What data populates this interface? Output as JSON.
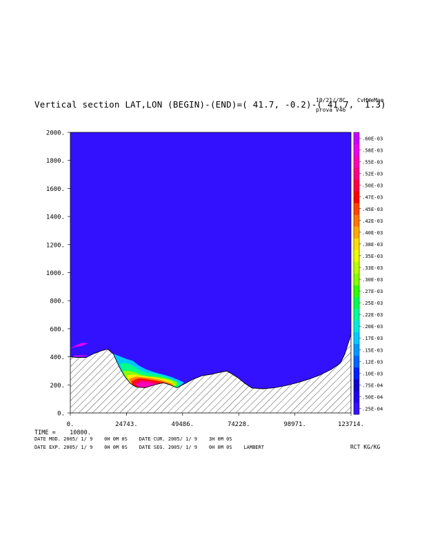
{
  "header": {
    "title": "Vertical section LAT,LON (BEGIN)-(END)=( 41.7, -0.2)-( 41.7,  1.3)",
    "run_date": "10/21//8C",
    "run_name": "prova V46",
    "model_id": "CvHWeMae"
  },
  "footer": {
    "time_line": "TIME =    10800.",
    "date_line_1": "DATE MOD. 2005/ 1/ 9    0H 0M 0S    DATE CUR. 2005/ 1/ 9    3H 0M 0S",
    "date_line_2": "DATE EXP. 2005/ 1/ 9    0H 0M 0S    DATE SEG. 2005/ 1/ 9    0H 0M 0S    LAMBERT",
    "units": "RCT KG/KG"
  },
  "chart_data": {
    "type": "heatmap",
    "title": "Vertical section LAT,LON (BEGIN)-(END)=( 41.7, -0.2)-( 41.7,  1.3)",
    "xlabel": "",
    "ylabel": "",
    "xlim": [
      0,
      123714
    ],
    "ylim": [
      0,
      2000
    ],
    "x_ticks": [
      "0.",
      "24743.",
      "49486.",
      "74228.",
      "98971.",
      "123714."
    ],
    "x_tick_values": [
      0,
      24743,
      49486,
      74228,
      98971,
      123714
    ],
    "y_ticks": [
      "0.",
      "200.",
      "400.",
      "600.",
      "800.",
      "1000.",
      "1200.",
      "1400.",
      "1600.",
      "1800.",
      "2000."
    ],
    "y_tick_values": [
      0,
      200,
      400,
      600,
      800,
      1000,
      1200,
      1400,
      1600,
      1800,
      2000
    ],
    "background_color": "#3311ff",
    "terrain": [
      [
        0,
        400
      ],
      [
        3000,
        395
      ],
      [
        7000,
        395
      ],
      [
        10000,
        420
      ],
      [
        14000,
        445
      ],
      [
        16500,
        455
      ],
      [
        19000,
        420
      ],
      [
        21500,
        330
      ],
      [
        24000,
        260
      ],
      [
        26500,
        210
      ],
      [
        29000,
        185
      ],
      [
        33000,
        180
      ],
      [
        37000,
        200
      ],
      [
        41000,
        215
      ],
      [
        44000,
        200
      ],
      [
        47000,
        180
      ],
      [
        50000,
        205
      ],
      [
        54000,
        240
      ],
      [
        58000,
        265
      ],
      [
        62000,
        275
      ],
      [
        66000,
        290
      ],
      [
        69000,
        298
      ],
      [
        71000,
        280
      ],
      [
        74000,
        250
      ],
      [
        77000,
        210
      ],
      [
        80000,
        178
      ],
      [
        85000,
        172
      ],
      [
        90000,
        180
      ],
      [
        95000,
        195
      ],
      [
        100000,
        215
      ],
      [
        105000,
        240
      ],
      [
        110000,
        270
      ],
      [
        115000,
        310
      ],
      [
        119000,
        355
      ],
      [
        121000,
        420
      ],
      [
        123714,
        560
      ]
    ],
    "contour_regions": [
      {
        "level": "1.00E-04",
        "color": "#dd00ff",
        "points": [
          [
            0,
            460
          ],
          [
            3000,
            485
          ],
          [
            5500,
            500
          ],
          [
            7500,
            495
          ],
          [
            5000,
            478
          ],
          [
            1500,
            470
          ]
        ]
      },
      {
        "level": "1.00E-04",
        "color": "#dd00ff",
        "points": [
          [
            14500,
            440
          ],
          [
            16000,
            458
          ],
          [
            17000,
            448
          ],
          [
            15500,
            436
          ]
        ]
      },
      {
        "level": "1.00E-04",
        "color": "#dd00ff",
        "points": [
          [
            1500,
            408
          ],
          [
            7500,
            410
          ],
          [
            6000,
            404
          ],
          [
            2000,
            402
          ]
        ]
      },
      {
        "level": "1.00E-04",
        "color": "#0d08ee",
        "points": [
          [
            10000,
            428
          ],
          [
            15500,
            450
          ],
          [
            17500,
            448
          ],
          [
            14000,
            436
          ]
        ]
      },
      {
        "level": "1.20E-04",
        "color": "#00c8ff",
        "points": [
          [
            19000,
            420
          ],
          [
            21500,
            405
          ],
          [
            24500,
            385
          ],
          [
            27500,
            370
          ],
          [
            30000,
            338
          ],
          [
            33000,
            312
          ],
          [
            36000,
            295
          ],
          [
            39000,
            280
          ],
          [
            42000,
            268
          ],
          [
            45000,
            252
          ],
          [
            48000,
            232
          ],
          [
            50000,
            215
          ],
          [
            47000,
            180
          ],
          [
            44000,
            200
          ],
          [
            41000,
            215
          ],
          [
            37000,
            200
          ],
          [
            33000,
            180
          ],
          [
            29000,
            185
          ],
          [
            26500,
            210
          ],
          [
            24000,
            260
          ],
          [
            21500,
            330
          ]
        ]
      },
      {
        "level": "1.70E-04",
        "color": "#00ff88",
        "points": [
          [
            22000,
            350
          ],
          [
            24000,
            355
          ],
          [
            26500,
            345
          ],
          [
            29000,
            320
          ],
          [
            31500,
            298
          ],
          [
            34000,
            285
          ],
          [
            37000,
            278
          ],
          [
            40500,
            265
          ],
          [
            43500,
            245
          ],
          [
            46500,
            225
          ],
          [
            48500,
            205
          ],
          [
            47000,
            180
          ],
          [
            44000,
            200
          ],
          [
            41000,
            215
          ],
          [
            37000,
            200
          ],
          [
            33000,
            180
          ],
          [
            29000,
            185
          ],
          [
            26500,
            210
          ],
          [
            24000,
            260
          ],
          [
            22500,
            320
          ]
        ]
      },
      {
        "level": "2.20E-04",
        "color": "#88ff00",
        "points": [
          [
            23500,
            300
          ],
          [
            26000,
            300
          ],
          [
            28500,
            288
          ],
          [
            31000,
            272
          ],
          [
            34000,
            262
          ],
          [
            37500,
            258
          ],
          [
            41000,
            250
          ],
          [
            44500,
            235
          ],
          [
            47000,
            218
          ],
          [
            46500,
            190
          ],
          [
            44000,
            200
          ],
          [
            41000,
            215
          ],
          [
            37000,
            200
          ],
          [
            33000,
            180
          ],
          [
            29000,
            185
          ],
          [
            26500,
            210
          ],
          [
            24000,
            260
          ]
        ]
      },
      {
        "level": "2.70E-04",
        "color": "#ffee00",
        "points": [
          [
            25000,
            268
          ],
          [
            28000,
            272
          ],
          [
            31000,
            262
          ],
          [
            34500,
            255
          ],
          [
            38000,
            248
          ],
          [
            41500,
            238
          ],
          [
            44500,
            222
          ],
          [
            46000,
            200
          ],
          [
            44000,
            200
          ],
          [
            41000,
            215
          ],
          [
            37000,
            200
          ],
          [
            33000,
            180
          ],
          [
            29000,
            185
          ],
          [
            26500,
            210
          ]
        ]
      },
      {
        "level": "3.30E-04",
        "color": "#ff8800",
        "points": [
          [
            26000,
            242
          ],
          [
            29000,
            258
          ],
          [
            32500,
            252
          ],
          [
            36000,
            245
          ],
          [
            39500,
            235
          ],
          [
            43000,
            218
          ],
          [
            45500,
            202
          ],
          [
            44000,
            200
          ],
          [
            41000,
            215
          ],
          [
            37000,
            200
          ],
          [
            33000,
            180
          ],
          [
            29000,
            185
          ],
          [
            27000,
            205
          ]
        ]
      },
      {
        "level": "4.00E-04",
        "color": "#ff1100",
        "points": [
          [
            27000,
            225
          ],
          [
            30000,
            245
          ],
          [
            33000,
            242
          ],
          [
            36500,
            232
          ],
          [
            40000,
            222
          ],
          [
            43000,
            208
          ],
          [
            44500,
            198
          ],
          [
            41000,
            212
          ],
          [
            37000,
            198
          ],
          [
            33000,
            182
          ],
          [
            29000,
            186
          ],
          [
            27500,
            200
          ]
        ]
      },
      {
        "level": "4.70E-04",
        "color": "#ff0066",
        "points": [
          [
            28500,
            212
          ],
          [
            31000,
            232
          ],
          [
            34000,
            228
          ],
          [
            37500,
            215
          ],
          [
            41000,
            205
          ],
          [
            43500,
            196
          ],
          [
            40500,
            200
          ],
          [
            36500,
            192
          ],
          [
            33000,
            184
          ],
          [
            29500,
            188
          ]
        ]
      },
      {
        "level": "5.20E-04",
        "color": "#ff00bb",
        "points": [
          [
            29000,
            198
          ],
          [
            31500,
            222
          ],
          [
            34500,
            216
          ],
          [
            37500,
            204
          ],
          [
            40500,
            196
          ],
          [
            43000,
            193
          ],
          [
            40000,
            192
          ],
          [
            36000,
            186
          ],
          [
            32500,
            186
          ],
          [
            29800,
            190
          ]
        ]
      }
    ],
    "colorbar": {
      "levels": [
        ".25E-04",
        ".50E-04",
        ".75E-04",
        ".10E-03",
        ".12E-03",
        ".15E-03",
        ".17E-03",
        ".20E-03",
        ".22E-03",
        ".25E-03",
        ".27E-03",
        ".30E-03",
        ".33E-03",
        ".35E-03",
        ".38E-03",
        ".40E-03",
        ".42E-03",
        ".45E-03",
        ".47E-03",
        ".50E-03",
        ".52E-03",
        ".55E-03",
        ".58E-03",
        ".60E-03"
      ],
      "colors": [
        "#3311ff",
        "#2200ee",
        "#1100cc",
        "#0022ff",
        "#0066ff",
        "#0099ff",
        "#00ccff",
        "#00eedd",
        "#00ff99",
        "#00ff55",
        "#33ff00",
        "#88ff00",
        "#bbff00",
        "#eeff00",
        "#ffdd00",
        "#ffaa00",
        "#ff7700",
        "#ff4400",
        "#ff0000",
        "#ff0044",
        "#ff0088",
        "#ff00bb",
        "#ee00ee",
        "#cc00ff"
      ]
    }
  }
}
